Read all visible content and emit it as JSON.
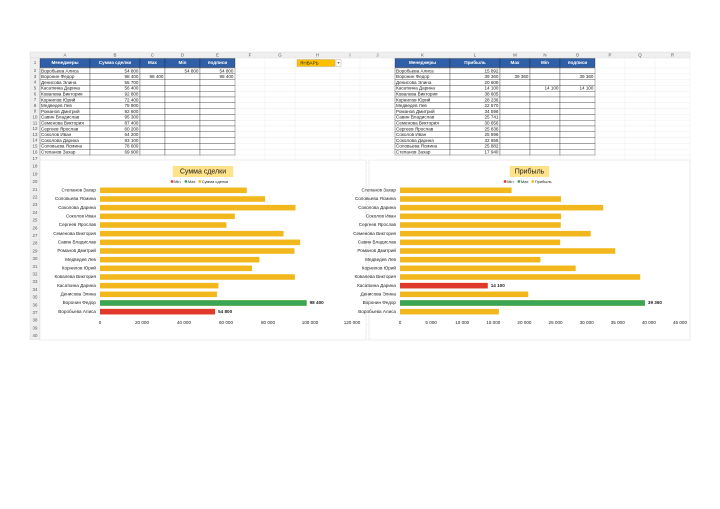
{
  "sheet": {
    "columns": [
      "A",
      "B",
      "C",
      "D",
      "E",
      "F",
      "G",
      "H",
      "I",
      "J",
      "K",
      "L",
      "M",
      "N",
      "O",
      "P",
      "Q",
      "R"
    ],
    "rows": [
      1,
      2,
      3,
      4,
      5,
      6,
      7,
      8,
      9,
      10,
      11,
      12,
      13,
      14,
      15,
      16,
      17,
      18,
      19,
      20,
      21,
      22,
      23,
      24,
      25,
      26,
      27,
      28,
      29,
      30,
      31,
      32,
      33,
      34,
      35,
      36,
      37,
      38,
      39,
      40
    ],
    "selector": "ЯНВАРЬ"
  },
  "tables": [
    {
      "header": [
        "Менеджеры",
        "Сумма сделки",
        "Max",
        "Min",
        "подписи"
      ],
      "rows": [
        [
          "Воробьева Алиса",
          "54 800",
          null,
          "54 800",
          "54 800"
        ],
        [
          "Воронин Федор",
          "98 400",
          "98 400",
          null,
          "98 400"
        ],
        [
          "Денисова Элина",
          "55 700",
          null,
          null,
          null
        ],
        [
          "Касаткина Дарина",
          "56 400",
          null,
          null,
          null
        ],
        [
          "Ковалева Виктория",
          "92 800",
          null,
          null,
          null
        ],
        [
          "Корнилов Юрий",
          "72 400",
          null,
          null,
          null
        ],
        [
          "Медведев Лев",
          "75 900",
          null,
          null,
          null
        ],
        [
          "Романов Дмитрий",
          "92 600",
          null,
          null,
          null
        ],
        [
          "Савин Владислав",
          "95 300",
          null,
          null,
          null
        ],
        [
          "Семенова Виктория",
          "87 400",
          null,
          null,
          null
        ],
        [
          "Сергеев Ярослав",
          "60 200",
          null,
          null,
          null
        ],
        [
          "Соколов Иван",
          "64 200",
          null,
          null,
          null
        ],
        [
          "Соколова Дарина",
          "93 100",
          null,
          null,
          null
        ],
        [
          "Соловьева Ясмина",
          "78 600",
          null,
          null,
          null
        ],
        [
          "Степанов Захар",
          "69 900",
          null,
          null,
          null
        ]
      ]
    },
    {
      "header": [
        "Менеджеры",
        "Прибыль",
        "Max",
        "Min",
        "подписи"
      ],
      "rows": [
        [
          "Воробьева Алиса",
          "15 892",
          null,
          null,
          null
        ],
        [
          "Воронин Федор",
          "39 360",
          "39 360",
          null,
          "39 360"
        ],
        [
          "Денисова Элина",
          "20 609",
          null,
          null,
          null
        ],
        [
          "Касаткина Дарина",
          "14 100",
          null,
          "14 100",
          "14 100"
        ],
        [
          "Ковалева Виктория",
          "38 605",
          null,
          null,
          null
        ],
        [
          "Корнилов Юрий",
          "28 236",
          null,
          null,
          null
        ],
        [
          "Медведев Лев",
          "22 570",
          null,
          null,
          null
        ],
        [
          "Романов Дмитрий",
          "34 596",
          null,
          null,
          null
        ],
        [
          "Савин Владислав",
          "25 741",
          null,
          null,
          null
        ],
        [
          "Семенова Виктория",
          "30 656",
          null,
          null,
          null
        ],
        [
          "Сергеев Ярослав",
          "25 836",
          null,
          null,
          null
        ],
        [
          "Соколов Иван",
          "25 896",
          null,
          null,
          null
        ],
        [
          "Соколова Дарина",
          "32 655",
          null,
          null,
          null
        ],
        [
          "Соловьева Ясмина",
          "25 882",
          null,
          null,
          null
        ],
        [
          "Степанов Захар",
          "17 940",
          null,
          null,
          null
        ]
      ]
    }
  ],
  "chart_data": [
    {
      "type": "bar",
      "orientation": "horizontal",
      "title": "Сумма сделки",
      "legend": "top",
      "categories": [
        "Воробьева Алиса",
        "Воронин Федор",
        "Денисова Элина",
        "Касаткина Дарина",
        "Ковалева Виктория",
        "Корнилов Юрий",
        "Медведев Лев",
        "Романов Дмитрий",
        "Савин Владислав",
        "Семенова Виктория",
        "Сергеев Ярослав",
        "Соколов Иван",
        "Соколова Дарина",
        "Соловьева Ясмина",
        "Степанов Захар"
      ],
      "series": [
        {
          "name": "Min",
          "color": "#e0392b",
          "values": [
            54800,
            null,
            null,
            null,
            null,
            null,
            null,
            null,
            null,
            null,
            null,
            null,
            null,
            null,
            null
          ],
          "value_labels": [
            "54 800",
            null,
            null,
            null,
            null,
            null,
            null,
            null,
            null,
            null,
            null,
            null,
            null,
            null,
            null
          ]
        },
        {
          "name": "Max",
          "color": "#3aa655",
          "values": [
            null,
            98400,
            null,
            null,
            null,
            null,
            null,
            null,
            null,
            null,
            null,
            null,
            null,
            null,
            null
          ],
          "value_labels": [
            null,
            "98 400",
            null,
            null,
            null,
            null,
            null,
            null,
            null,
            null,
            null,
            null,
            null,
            null,
            null
          ]
        },
        {
          "name": "Сумма сделки",
          "color": "#f1b71c",
          "values": [
            54800,
            98400,
            55700,
            56400,
            92800,
            72400,
            75900,
            92600,
            95300,
            87400,
            60200,
            64200,
            93100,
            78600,
            69900
          ]
        }
      ],
      "xlim": [
        0,
        120000
      ],
      "xticks": [
        0,
        {
          "value": 20000,
          "label": "20 000"
        },
        {
          "value": 40000,
          "label": "40 000"
        },
        {
          "value": 60000,
          "label": "60 000"
        },
        {
          "value": 80000,
          "label": "80 000"
        },
        {
          "value": 100000,
          "label": "100 000"
        },
        {
          "value": 120000,
          "label": "120 000"
        }
      ]
    },
    {
      "type": "bar",
      "orientation": "horizontal",
      "title": "Прибыль",
      "legend": "top",
      "categories": [
        "Воробьева Алиса",
        "Воронин Федор",
        "Денисова Элина",
        "Касаткина Дарина",
        "Ковалева Виктория",
        "Корнилов Юрий",
        "Медведев Лев",
        "Романов Дмитрий",
        "Савин Владислав",
        "Семенова Виктория",
        "Сергеев Ярослав",
        "Соколов Иван",
        "Соколова Дарина",
        "Соловьева Ясмина",
        "Степанов Захар"
      ],
      "series": [
        {
          "name": "Min",
          "color": "#e0392b",
          "values": [
            null,
            null,
            null,
            14100,
            null,
            null,
            null,
            null,
            null,
            null,
            null,
            null,
            null,
            null,
            null
          ],
          "value_labels": [
            null,
            null,
            null,
            "14 100",
            null,
            null,
            null,
            null,
            null,
            null,
            null,
            null,
            null,
            null,
            null
          ]
        },
        {
          "name": "Max",
          "color": "#3aa655",
          "values": [
            null,
            39360,
            null,
            null,
            null,
            null,
            null,
            null,
            null,
            null,
            null,
            null,
            null,
            null,
            null
          ],
          "value_labels": [
            null,
            "39 360",
            null,
            null,
            null,
            null,
            null,
            null,
            null,
            null,
            null,
            null,
            null,
            null,
            null
          ]
        },
        {
          "name": "Прибыль",
          "color": "#f1b71c",
          "values": [
            15892,
            39360,
            20609,
            14100,
            38605,
            28236,
            22570,
            34596,
            25741,
            30656,
            25836,
            25896,
            32655,
            25882,
            17940
          ]
        }
      ],
      "xlim": [
        0,
        45000
      ],
      "xticks": [
        0,
        {
          "value": 5000,
          "label": "5 000"
        },
        {
          "value": 10000,
          "label": "10 000"
        },
        {
          "value": 15000,
          "label": "15 000"
        },
        {
          "value": 20000,
          "label": "20 000"
        },
        {
          "value": 25000,
          "label": "25 000"
        },
        {
          "value": 30000,
          "label": "30 000"
        },
        {
          "value": 35000,
          "label": "35 000"
        },
        {
          "value": 40000,
          "label": "40 000"
        },
        {
          "value": 45000,
          "label": "45 000"
        }
      ]
    }
  ]
}
